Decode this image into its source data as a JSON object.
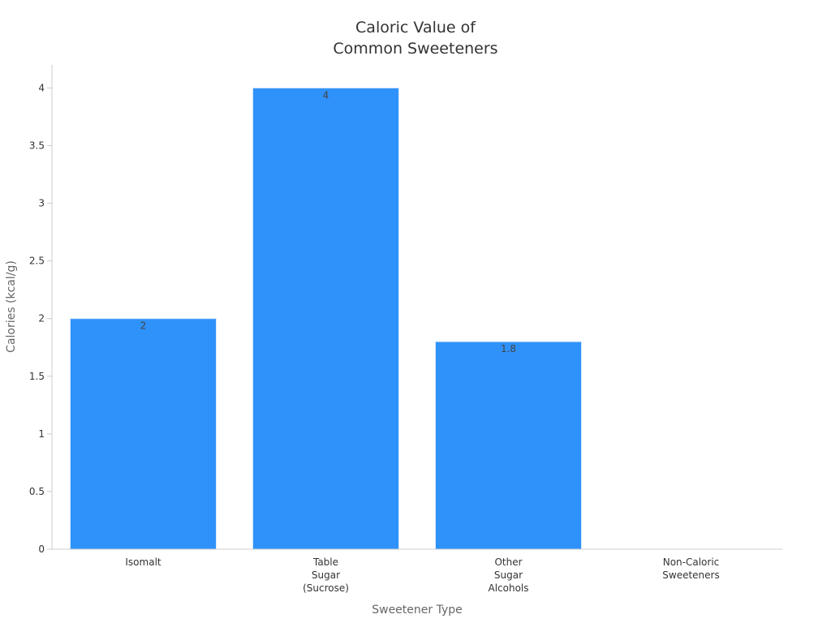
{
  "chart_data": {
    "type": "bar",
    "title_lines": [
      "Caloric Value of",
      "Common Sweeteners"
    ],
    "xlabel": "Sweetener Type",
    "ylabel": "Calories (kcal/g)",
    "categories": [
      [
        "Isomalt"
      ],
      [
        "Table",
        "Sugar",
        "(Sucrose)"
      ],
      [
        "Other",
        "Sugar",
        "Alcohols"
      ],
      [
        "Non-Caloric",
        "Sweeteners"
      ]
    ],
    "values": [
      2,
      4,
      1.8,
      0
    ],
    "data_labels": [
      "2",
      "4",
      "1.8",
      ""
    ],
    "ylim": [
      0,
      4.2
    ],
    "yticks": [
      "0",
      "0.5",
      "1",
      "1.5",
      "2",
      "2.5",
      "3",
      "3.5",
      "4"
    ],
    "ytick_values": [
      0,
      0.5,
      1,
      1.5,
      2,
      2.5,
      3,
      3.5,
      4
    ],
    "grid": false,
    "legend": "none",
    "colors": {
      "bar": "#2f92fa",
      "bar_edge": "#d8e9fb",
      "axis": "#cccccc",
      "text": "#333333"
    }
  }
}
